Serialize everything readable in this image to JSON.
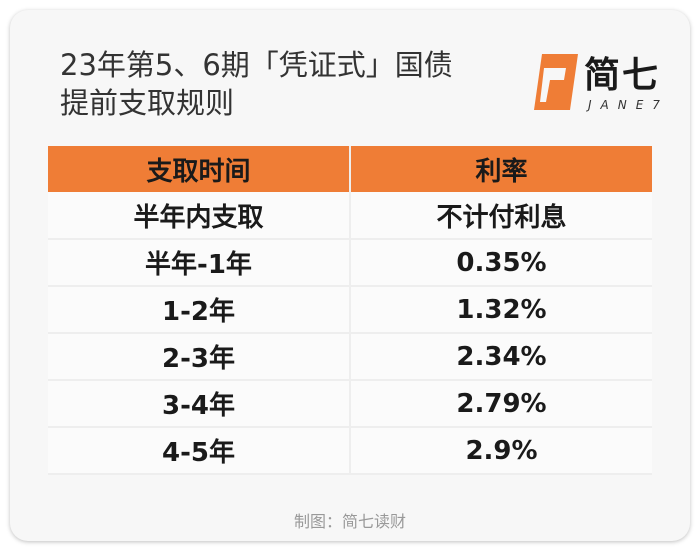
{
  "title": {
    "line1": "23年第5、6期「凭证式」国债",
    "line2": "提前支取规则"
  },
  "logo": {
    "icon": "janeqi-logo-mark-icon",
    "text_cn": "简七",
    "text_en": "JANE7",
    "color": "#ef7d36"
  },
  "table": {
    "header_color": "#ef7d36",
    "columns": [
      "支取时间",
      "利率"
    ],
    "rows": [
      [
        "半年内支取",
        "不计付利息"
      ],
      [
        "半年-1年",
        "0.35%"
      ],
      [
        "1-2年",
        "1.32%"
      ],
      [
        "2-3年",
        "2.34%"
      ],
      [
        "3-4年",
        "2.79%"
      ],
      [
        "4-5年",
        "2.9%"
      ]
    ]
  },
  "footer": "制图：简七读财"
}
